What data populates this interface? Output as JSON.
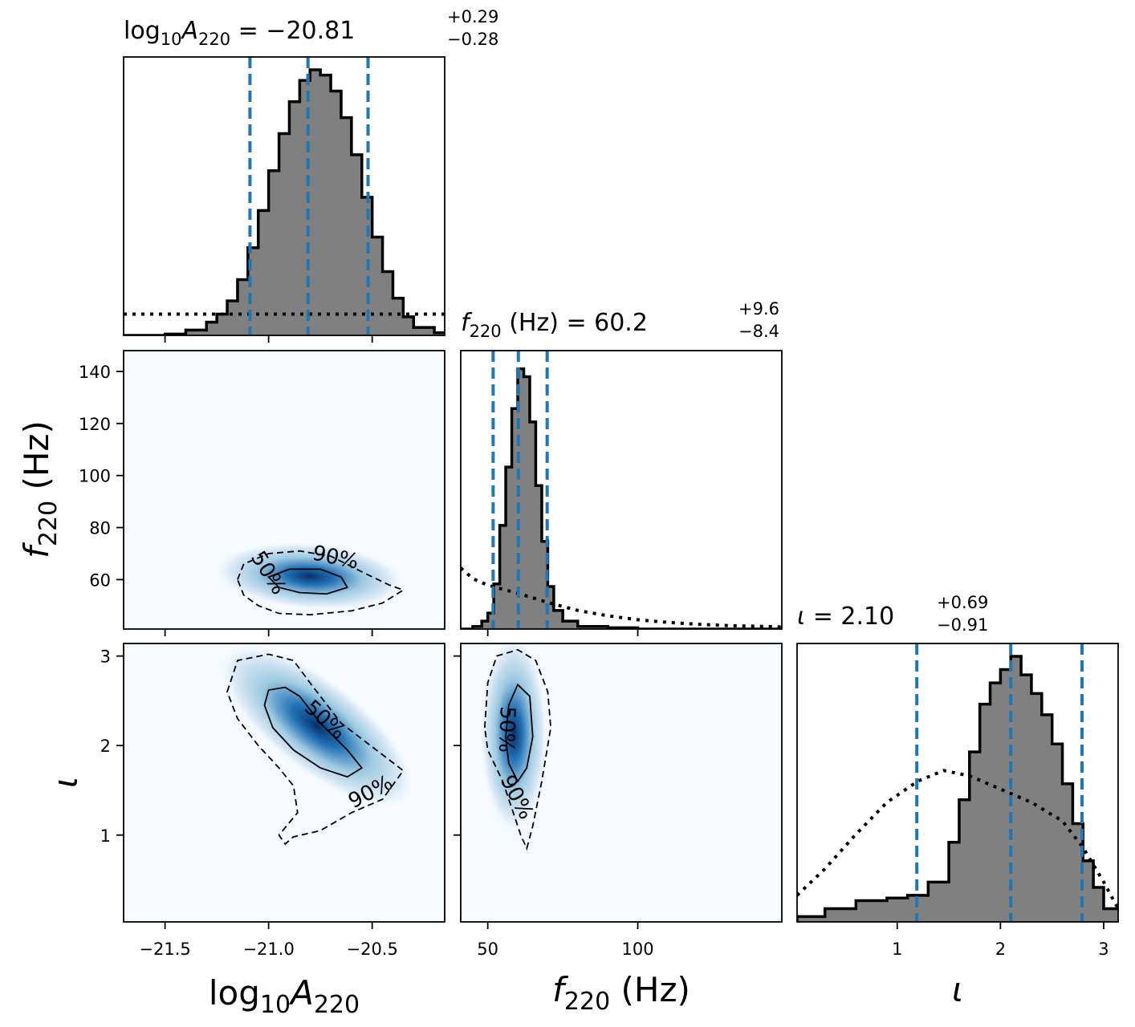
{
  "chart_data": {
    "type": "corner",
    "params": [
      {
        "key": "logA",
        "label_main": "log",
        "label_sub1": "10",
        "label_italic": "A",
        "label_sub2": "220",
        "title_eq": " = −20.81",
        "title_plus": "+0.29",
        "title_minus": "−0.28",
        "median": -20.81,
        "q_low": -21.09,
        "q_high": -20.52,
        "range": [
          -21.7,
          -20.15
        ],
        "ticks": [
          -21.5,
          -21.0,
          -20.5
        ],
        "tick_labels": [
          "−21.5",
          "−21.0",
          "−20.5"
        ]
      },
      {
        "key": "f220",
        "label_italic": "f",
        "label_sub": "220",
        "label_unit": " (Hz)",
        "title_eq": " = 60.2",
        "title_plus": "+9.6",
        "title_minus": "−8.4",
        "median": 60.2,
        "q_low": 51.8,
        "q_high": 69.8,
        "range": [
          41,
          148
        ],
        "ticks_x": [
          50,
          100
        ],
        "tick_labels_x": [
          "50",
          "100"
        ],
        "ticks_y": [
          60,
          80,
          100,
          120,
          140
        ],
        "tick_labels_y": [
          "60",
          "80",
          "100",
          "120",
          "140"
        ]
      },
      {
        "key": "iota",
        "label_italic": "ι",
        "title_eq": " = 2.10",
        "title_plus": "+0.69",
        "title_minus": "−0.91",
        "median": 2.1,
        "q_low": 1.19,
        "q_high": 2.79,
        "range": [
          0.03,
          3.14
        ],
        "ticks": [
          1,
          2,
          3
        ],
        "tick_labels": [
          "1",
          "2",
          "3"
        ]
      }
    ],
    "hist_logA": {
      "x": [
        -21.7,
        -21.6,
        -21.5,
        -21.4,
        -21.3,
        -21.25,
        -21.2,
        -21.15,
        -21.1,
        -21.05,
        -21.0,
        -20.95,
        -20.9,
        -20.85,
        -20.8,
        -20.75,
        -20.7,
        -20.65,
        -20.6,
        -20.55,
        -20.5,
        -20.45,
        -20.4,
        -20.35,
        -20.3,
        -20.2,
        -20.15
      ],
      "y": [
        0.0,
        0.0,
        0.005,
        0.02,
        0.05,
        0.08,
        0.13,
        0.21,
        0.33,
        0.47,
        0.62,
        0.76,
        0.88,
        0.96,
        1.0,
        0.98,
        0.92,
        0.82,
        0.68,
        0.52,
        0.37,
        0.24,
        0.14,
        0.07,
        0.03,
        0.01,
        0.005
      ],
      "prior": 0.08
    },
    "hist_f220": {
      "x": [
        41,
        45,
        48,
        50,
        52,
        54,
        56,
        58,
        60,
        62,
        64,
        66,
        68,
        70,
        72,
        75,
        80,
        90,
        100,
        148
      ],
      "y": [
        0.0,
        0.01,
        0.03,
        0.06,
        0.17,
        0.39,
        0.61,
        0.83,
        0.98,
        0.95,
        0.78,
        0.54,
        0.33,
        0.16,
        0.07,
        0.03,
        0.01,
        0.005,
        0.0,
        0.0
      ],
      "prior": [
        [
          41,
          0.23
        ],
        [
          45,
          0.19
        ],
        [
          50,
          0.165
        ],
        [
          55,
          0.15
        ],
        [
          60,
          0.135
        ],
        [
          70,
          0.1
        ],
        [
          80,
          0.07
        ],
        [
          90,
          0.05
        ],
        [
          100,
          0.035
        ],
        [
          110,
          0.025
        ],
        [
          120,
          0.018
        ],
        [
          130,
          0.013
        ],
        [
          148,
          0.008
        ]
      ]
    },
    "hist_iota": {
      "x": [
        0.03,
        0.3,
        0.6,
        0.9,
        1.1,
        1.3,
        1.5,
        1.6,
        1.7,
        1.8,
        1.9,
        2.0,
        2.1,
        2.2,
        2.3,
        2.4,
        2.5,
        2.6,
        2.7,
        2.8,
        2.9,
        3.0,
        3.14
      ],
      "y": [
        0.02,
        0.05,
        0.08,
        0.09,
        0.1,
        0.15,
        0.3,
        0.46,
        0.64,
        0.82,
        0.9,
        0.95,
        1.0,
        0.93,
        0.86,
        0.78,
        0.67,
        0.52,
        0.37,
        0.23,
        0.13,
        0.05,
        0.01
      ],
      "prior": [
        [
          0.03,
          0.1
        ],
        [
          0.3,
          0.2
        ],
        [
          0.6,
          0.33
        ],
        [
          0.9,
          0.45
        ],
        [
          1.2,
          0.53
        ],
        [
          1.45,
          0.57
        ],
        [
          1.7,
          0.55
        ],
        [
          2.0,
          0.5
        ],
        [
          2.3,
          0.45
        ],
        [
          2.6,
          0.38
        ],
        [
          2.8,
          0.28
        ],
        [
          3.0,
          0.15
        ],
        [
          3.14,
          0.05
        ]
      ]
    },
    "contours": {
      "logA_f220": {
        "p90": [
          [
            -21.15,
            60
          ],
          [
            -21.12,
            66
          ],
          [
            -21.0,
            70
          ],
          [
            -20.85,
            71
          ],
          [
            -20.7,
            69
          ],
          [
            -20.55,
            63
          ],
          [
            -20.42,
            58
          ],
          [
            -20.35,
            56
          ],
          [
            -20.45,
            51
          ],
          [
            -20.6,
            48
          ],
          [
            -20.8,
            46.5
          ],
          [
            -20.95,
            47
          ],
          [
            -21.05,
            50
          ],
          [
            -21.12,
            54
          ],
          [
            -21.15,
            60
          ]
        ],
        "p50": [
          [
            -21.0,
            61
          ],
          [
            -20.9,
            64
          ],
          [
            -20.75,
            64
          ],
          [
            -20.65,
            61
          ],
          [
            -20.62,
            57
          ],
          [
            -20.72,
            54.5
          ],
          [
            -20.85,
            55
          ],
          [
            -20.95,
            57
          ],
          [
            -21.0,
            61
          ]
        ]
      },
      "logA_iota": {
        "p90": [
          [
            -21.2,
            2.6
          ],
          [
            -21.15,
            2.95
          ],
          [
            -21.0,
            3.02
          ],
          [
            -20.88,
            2.95
          ],
          [
            -20.8,
            2.7
          ],
          [
            -20.65,
            2.25
          ],
          [
            -20.48,
            1.95
          ],
          [
            -20.35,
            1.72
          ],
          [
            -20.45,
            1.4
          ],
          [
            -20.6,
            1.25
          ],
          [
            -20.75,
            1.05
          ],
          [
            -20.88,
            0.98
          ],
          [
            -20.92,
            0.9
          ],
          [
            -20.95,
            1.0
          ],
          [
            -20.86,
            1.25
          ],
          [
            -20.88,
            1.55
          ],
          [
            -20.95,
            1.75
          ],
          [
            -21.05,
            2.0
          ],
          [
            -21.15,
            2.3
          ],
          [
            -21.2,
            2.6
          ]
        ],
        "p50": [
          [
            -21.02,
            2.45
          ],
          [
            -21.0,
            2.62
          ],
          [
            -20.92,
            2.65
          ],
          [
            -20.85,
            2.55
          ],
          [
            -20.75,
            2.25
          ],
          [
            -20.62,
            1.95
          ],
          [
            -20.55,
            1.75
          ],
          [
            -20.62,
            1.65
          ],
          [
            -20.75,
            1.75
          ],
          [
            -20.88,
            1.95
          ],
          [
            -20.98,
            2.2
          ],
          [
            -21.02,
            2.45
          ]
        ]
      },
      "f220_iota": {
        "p90": [
          [
            49,
            2.2
          ],
          [
            50,
            2.7
          ],
          [
            53,
            3.0
          ],
          [
            60,
            3.07
          ],
          [
            66,
            2.95
          ],
          [
            70,
            2.6
          ],
          [
            71,
            2.2
          ],
          [
            68,
            1.6
          ],
          [
            65,
            1.1
          ],
          [
            63,
            0.85
          ],
          [
            61,
            1.0
          ],
          [
            55,
            1.6
          ],
          [
            50,
            1.95
          ],
          [
            49,
            2.2
          ]
        ],
        "p50": [
          [
            56,
            2.1
          ],
          [
            57,
            2.45
          ],
          [
            60,
            2.68
          ],
          [
            64,
            2.55
          ],
          [
            65,
            2.1
          ],
          [
            63,
            1.75
          ],
          [
            60,
            1.6
          ],
          [
            57,
            1.8
          ],
          [
            56,
            2.1
          ]
        ]
      },
      "label_50": "50%",
      "label_90": "90%"
    }
  }
}
